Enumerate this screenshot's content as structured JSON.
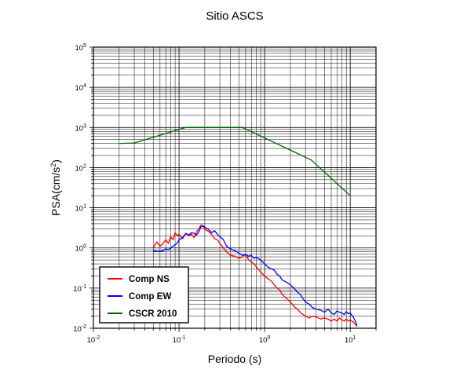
{
  "chart_data": {
    "type": "line",
    "title": "Sitio ASCS",
    "xlabel": "Periodo (s)",
    "ylabel": "PSA(cm/s",
    "ylabel_sup": "2",
    "ylabel_close": ")",
    "x_scale": "log",
    "y_scale": "log",
    "xlim": [
      0.01,
      20
    ],
    "ylim": [
      0.01,
      100000
    ],
    "x_ticks": [
      {
        "value": 0.01,
        "base": "10",
        "exp": "-2"
      },
      {
        "value": 0.1,
        "base": "10",
        "exp": "-1"
      },
      {
        "value": 1,
        "base": "10",
        "exp": "0"
      },
      {
        "value": 10,
        "base": "10",
        "exp": "1"
      }
    ],
    "y_ticks": [
      {
        "value": 0.01,
        "base": "10",
        "exp": "-2"
      },
      {
        "value": 0.1,
        "base": "10",
        "exp": "-1"
      },
      {
        "value": 1,
        "base": "10",
        "exp": "0"
      },
      {
        "value": 10,
        "base": "10",
        "exp": "1"
      },
      {
        "value": 100,
        "base": "10",
        "exp": "2"
      },
      {
        "value": 1000,
        "base": "10",
        "exp": "3"
      },
      {
        "value": 10000,
        "base": "10",
        "exp": "4"
      },
      {
        "value": 100000,
        "base": "10",
        "exp": "5"
      }
    ],
    "grid": true,
    "legend_position": "bottom-left",
    "series": [
      {
        "name": "Comp NS",
        "color": "#ff0000",
        "x": [
          0.05,
          0.055,
          0.06,
          0.065,
          0.07,
          0.075,
          0.08,
          0.085,
          0.09,
          0.095,
          0.1,
          0.11,
          0.12,
          0.13,
          0.14,
          0.15,
          0.16,
          0.17,
          0.18,
          0.19,
          0.2,
          0.22,
          0.24,
          0.26,
          0.28,
          0.3,
          0.33,
          0.36,
          0.4,
          0.45,
          0.5,
          0.55,
          0.6,
          0.65,
          0.7,
          0.75,
          0.8,
          0.9,
          1.0,
          1.1,
          1.2,
          1.3,
          1.4,
          1.5,
          1.6,
          1.8,
          2.0,
          2.2,
          2.4,
          2.6,
          2.8,
          3.0,
          3.3,
          3.6,
          4.0,
          4.5,
          5.0,
          5.5,
          6.0,
          6.5,
          7.0,
          7.5,
          8.0,
          8.5,
          9.0,
          9.5,
          10.0,
          11.0,
          12.0
        ],
        "values": [
          1.0,
          1.4,
          1.1,
          1.3,
          1.6,
          1.3,
          1.9,
          1.6,
          2.4,
          2.0,
          2.2,
          1.7,
          2.3,
          2.0,
          2.2,
          1.8,
          2.5,
          3.0,
          3.7,
          3.5,
          2.9,
          2.6,
          2.2,
          1.7,
          1.6,
          1.3,
          1.0,
          0.8,
          0.65,
          0.62,
          0.55,
          0.6,
          0.7,
          0.5,
          0.45,
          0.4,
          0.34,
          0.25,
          0.2,
          0.17,
          0.15,
          0.12,
          0.1,
          0.09,
          0.07,
          0.055,
          0.045,
          0.035,
          0.03,
          0.025,
          0.022,
          0.02,
          0.018,
          0.02,
          0.019,
          0.017,
          0.018,
          0.017,
          0.015,
          0.017,
          0.015,
          0.018,
          0.016,
          0.015,
          0.017,
          0.015,
          0.016,
          0.014,
          0.011
        ]
      },
      {
        "name": "Comp EW",
        "color": "#0000ff",
        "x": [
          0.05,
          0.055,
          0.06,
          0.065,
          0.07,
          0.075,
          0.08,
          0.085,
          0.09,
          0.095,
          0.1,
          0.11,
          0.12,
          0.13,
          0.14,
          0.15,
          0.16,
          0.17,
          0.18,
          0.19,
          0.2,
          0.22,
          0.24,
          0.26,
          0.28,
          0.3,
          0.33,
          0.36,
          0.4,
          0.45,
          0.5,
          0.55,
          0.6,
          0.65,
          0.7,
          0.75,
          0.8,
          0.9,
          1.0,
          1.1,
          1.2,
          1.3,
          1.4,
          1.5,
          1.6,
          1.8,
          2.0,
          2.2,
          2.4,
          2.6,
          2.8,
          3.0,
          3.3,
          3.6,
          4.0,
          4.5,
          5.0,
          5.5,
          6.0,
          6.5,
          7.0,
          7.5,
          8.0,
          8.5,
          9.0,
          9.5,
          10.0,
          11.0,
          12.0
        ],
        "values": [
          0.85,
          0.82,
          0.82,
          0.85,
          0.95,
          0.9,
          1.0,
          1.1,
          1.2,
          1.3,
          1.6,
          1.8,
          2.3,
          2.1,
          2.4,
          2.3,
          2.1,
          2.5,
          3.3,
          3.6,
          3.3,
          2.9,
          2.4,
          2.7,
          2.2,
          1.9,
          1.6,
          1.1,
          0.95,
          0.85,
          0.75,
          0.65,
          0.68,
          0.62,
          0.65,
          0.55,
          0.58,
          0.5,
          0.4,
          0.33,
          0.3,
          0.28,
          0.22,
          0.2,
          0.16,
          0.14,
          0.12,
          0.1,
          0.08,
          0.07,
          0.055,
          0.045,
          0.04,
          0.033,
          0.03,
          0.028,
          0.025,
          0.03,
          0.024,
          0.022,
          0.027,
          0.025,
          0.024,
          0.022,
          0.026,
          0.023,
          0.024,
          0.018,
          0.012
        ]
      },
      {
        "name": "CSCR 2010",
        "color": "#006400",
        "x": [
          0.02,
          0.03,
          0.12,
          0.55,
          3.5,
          10.0
        ],
        "values": [
          400,
          410,
          1000,
          1000,
          155,
          20
        ]
      }
    ]
  }
}
